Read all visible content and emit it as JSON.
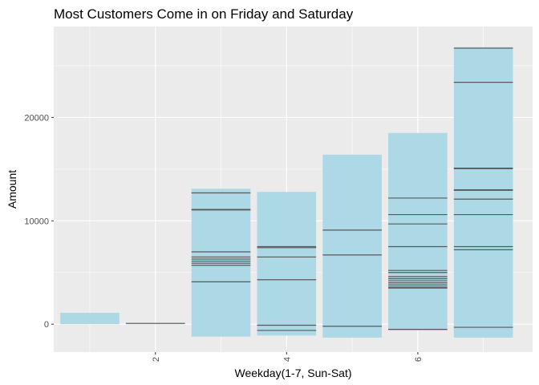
{
  "chart_data": {
    "type": "bar",
    "title": "Most Customers Come in on Friday and Saturday",
    "xlabel": "Weekday(1-7, Sun-Sat)",
    "ylabel": "Amount",
    "x_ticks": [
      2,
      4,
      6
    ],
    "y_ticks": [
      0,
      10000,
      20000
    ],
    "xlim": [
      0.45,
      7.75
    ],
    "ylim": [
      -2700,
      28800
    ],
    "bar_color": "#add8e6",
    "segment_line_color": "#595959",
    "panel_color": "#ebebeb",
    "grid": true,
    "bars": [
      {
        "x": 1,
        "top": 1100,
        "bottom": 0,
        "lines": []
      },
      {
        "x": 2,
        "top": 100,
        "bottom": 0,
        "lines": [
          80
        ]
      },
      {
        "x": 3,
        "top": 13100,
        "bottom": -1200,
        "lines": [
          12700,
          11100,
          11050,
          7000,
          6500,
          6300,
          6100,
          5900,
          5700,
          4100
        ]
      },
      {
        "x": 4,
        "top": 12800,
        "bottom": -1100,
        "lines": [
          7500,
          7400,
          6500,
          4300,
          -100,
          -600
        ]
      },
      {
        "x": 5,
        "top": 16400,
        "bottom": -1300,
        "lines": [
          9100,
          6700,
          -200
        ]
      },
      {
        "x": 6,
        "top": 18500,
        "bottom": -600,
        "lines": [
          12200,
          10600,
          9700,
          7500,
          5200,
          5000,
          4600,
          4400,
          4200,
          4000,
          3800,
          3600,
          3500,
          -500
        ]
      },
      {
        "x": 7,
        "top": 26800,
        "bottom": -1300,
        "lines": [
          26700,
          23400,
          15100,
          15050,
          13000,
          12950,
          12100,
          10600,
          7500,
          7200,
          -300
        ]
      }
    ]
  }
}
